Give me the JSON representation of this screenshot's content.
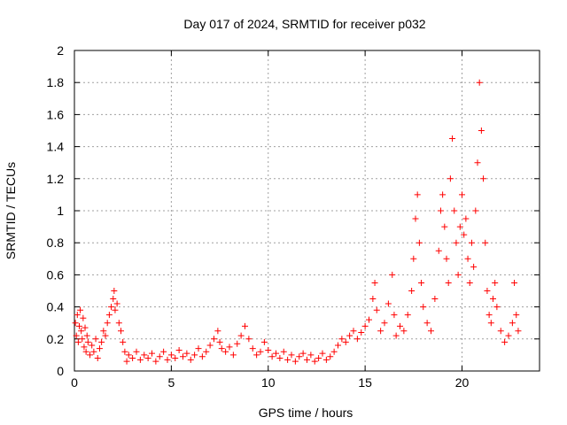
{
  "chart_data": {
    "type": "scatter",
    "title": "Day 017 of 2024, SRMTID for receiver p032",
    "xlabel": "GPS time / hours",
    "ylabel": "SRMTID / TECUs",
    "xlim": [
      0,
      24
    ],
    "ylim": [
      0,
      2
    ],
    "xticks": [
      0,
      5,
      10,
      15,
      20
    ],
    "xtick_labels": [
      "0",
      "5",
      "10",
      "15",
      "20"
    ],
    "yticks": [
      0,
      0.2,
      0.4,
      0.6,
      0.8,
      1,
      1.2,
      1.4,
      1.6,
      1.8,
      2
    ],
    "ytick_labels": [
      "0",
      "0.2",
      "0.4",
      "0.6",
      "0.8",
      "1",
      "1.2",
      "1.4",
      "1.6",
      "1.8",
      "2"
    ],
    "grid": true,
    "marker": "+",
    "color": "#ff0000",
    "series": [
      {
        "name": "p032",
        "points": [
          [
            0.05,
            0.3
          ],
          [
            0.1,
            0.22
          ],
          [
            0.15,
            0.35
          ],
          [
            0.2,
            0.18
          ],
          [
            0.25,
            0.28
          ],
          [
            0.3,
            0.38
          ],
          [
            0.35,
            0.25
          ],
          [
            0.4,
            0.2
          ],
          [
            0.45,
            0.33
          ],
          [
            0.5,
            0.15
          ],
          [
            0.55,
            0.27
          ],
          [
            0.6,
            0.12
          ],
          [
            0.65,
            0.22
          ],
          [
            0.7,
            0.18
          ],
          [
            0.8,
            0.1
          ],
          [
            0.9,
            0.16
          ],
          [
            1.0,
            0.12
          ],
          [
            1.1,
            0.2
          ],
          [
            1.2,
            0.08
          ],
          [
            1.3,
            0.14
          ],
          [
            1.4,
            0.18
          ],
          [
            1.5,
            0.25
          ],
          [
            1.6,
            0.22
          ],
          [
            1.7,
            0.3
          ],
          [
            1.8,
            0.35
          ],
          [
            1.9,
            0.4
          ],
          [
            2.0,
            0.45
          ],
          [
            2.05,
            0.5
          ],
          [
            2.1,
            0.38
          ],
          [
            2.2,
            0.42
          ],
          [
            2.3,
            0.3
          ],
          [
            2.4,
            0.25
          ],
          [
            2.5,
            0.18
          ],
          [
            2.6,
            0.12
          ],
          [
            2.7,
            0.06
          ],
          [
            2.8,
            0.1
          ],
          [
            3.0,
            0.08
          ],
          [
            3.2,
            0.12
          ],
          [
            3.4,
            0.07
          ],
          [
            3.6,
            0.1
          ],
          [
            3.8,
            0.08
          ],
          [
            4.0,
            0.11
          ],
          [
            4.2,
            0.06
          ],
          [
            4.4,
            0.09
          ],
          [
            4.6,
            0.12
          ],
          [
            4.8,
            0.07
          ],
          [
            5.0,
            0.1
          ],
          [
            5.2,
            0.08
          ],
          [
            5.4,
            0.13
          ],
          [
            5.6,
            0.09
          ],
          [
            5.8,
            0.11
          ],
          [
            6.0,
            0.07
          ],
          [
            6.2,
            0.1
          ],
          [
            6.4,
            0.14
          ],
          [
            6.6,
            0.09
          ],
          [
            6.8,
            0.12
          ],
          [
            7.0,
            0.16
          ],
          [
            7.2,
            0.2
          ],
          [
            7.4,
            0.25
          ],
          [
            7.5,
            0.18
          ],
          [
            7.6,
            0.14
          ],
          [
            7.8,
            0.12
          ],
          [
            8.0,
            0.15
          ],
          [
            8.2,
            0.1
          ],
          [
            8.4,
            0.17
          ],
          [
            8.6,
            0.22
          ],
          [
            8.8,
            0.28
          ],
          [
            9.0,
            0.2
          ],
          [
            9.2,
            0.14
          ],
          [
            9.4,
            0.1
          ],
          [
            9.6,
            0.12
          ],
          [
            9.8,
            0.18
          ],
          [
            10.0,
            0.13
          ],
          [
            10.2,
            0.09
          ],
          [
            10.4,
            0.11
          ],
          [
            10.6,
            0.08
          ],
          [
            10.8,
            0.12
          ],
          [
            11.0,
            0.07
          ],
          [
            11.2,
            0.1
          ],
          [
            11.4,
            0.06
          ],
          [
            11.6,
            0.09
          ],
          [
            11.8,
            0.11
          ],
          [
            12.0,
            0.07
          ],
          [
            12.2,
            0.1
          ],
          [
            12.4,
            0.06
          ],
          [
            12.6,
            0.08
          ],
          [
            12.8,
            0.11
          ],
          [
            13.0,
            0.07
          ],
          [
            13.2,
            0.09
          ],
          [
            13.4,
            0.12
          ],
          [
            13.6,
            0.16
          ],
          [
            13.8,
            0.2
          ],
          [
            14.0,
            0.18
          ],
          [
            14.2,
            0.22
          ],
          [
            14.4,
            0.25
          ],
          [
            14.6,
            0.2
          ],
          [
            14.8,
            0.24
          ],
          [
            15.0,
            0.28
          ],
          [
            15.2,
            0.32
          ],
          [
            15.4,
            0.45
          ],
          [
            15.5,
            0.55
          ],
          [
            15.6,
            0.38
          ],
          [
            15.8,
            0.25
          ],
          [
            16.0,
            0.3
          ],
          [
            16.2,
            0.42
          ],
          [
            16.4,
            0.6
          ],
          [
            16.5,
            0.35
          ],
          [
            16.6,
            0.22
          ],
          [
            16.8,
            0.28
          ],
          [
            17.0,
            0.25
          ],
          [
            17.2,
            0.35
          ],
          [
            17.4,
            0.5
          ],
          [
            17.5,
            0.7
          ],
          [
            17.6,
            0.95
          ],
          [
            17.7,
            1.1
          ],
          [
            17.8,
            0.8
          ],
          [
            17.9,
            0.55
          ],
          [
            18.0,
            0.4
          ],
          [
            18.2,
            0.3
          ],
          [
            18.4,
            0.25
          ],
          [
            18.6,
            0.45
          ],
          [
            18.8,
            0.75
          ],
          [
            18.9,
            1.0
          ],
          [
            19.0,
            1.1
          ],
          [
            19.1,
            0.9
          ],
          [
            19.2,
            0.7
          ],
          [
            19.3,
            0.55
          ],
          [
            19.4,
            1.2
          ],
          [
            19.5,
            1.45
          ],
          [
            19.6,
            1.0
          ],
          [
            19.7,
            0.8
          ],
          [
            19.8,
            0.6
          ],
          [
            19.9,
            0.9
          ],
          [
            20.0,
            1.1
          ],
          [
            20.1,
            0.85
          ],
          [
            20.2,
            0.95
          ],
          [
            20.3,
            0.7
          ],
          [
            20.4,
            0.55
          ],
          [
            20.5,
            0.8
          ],
          [
            20.6,
            0.65
          ],
          [
            20.7,
            1.0
          ],
          [
            20.8,
            1.3
          ],
          [
            20.9,
            1.8
          ],
          [
            21.0,
            1.5
          ],
          [
            21.1,
            1.2
          ],
          [
            21.2,
            0.8
          ],
          [
            21.3,
            0.5
          ],
          [
            21.4,
            0.35
          ],
          [
            21.5,
            0.3
          ],
          [
            21.6,
            0.45
          ],
          [
            21.7,
            0.55
          ],
          [
            21.8,
            0.4
          ],
          [
            22.0,
            0.25
          ],
          [
            22.2,
            0.18
          ],
          [
            22.4,
            0.22
          ],
          [
            22.6,
            0.3
          ],
          [
            22.7,
            0.55
          ],
          [
            22.8,
            0.35
          ],
          [
            22.9,
            0.25
          ]
        ]
      }
    ]
  }
}
